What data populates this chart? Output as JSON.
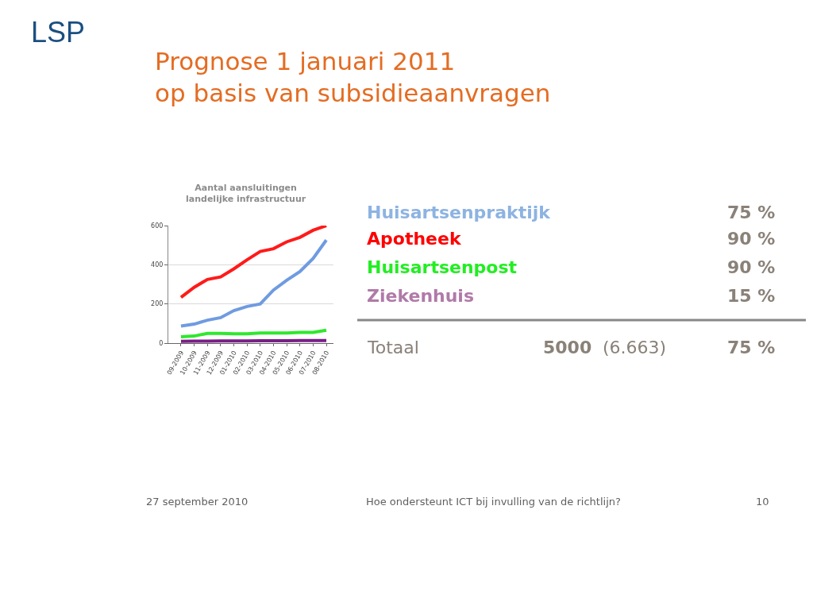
{
  "chart_data": [
    {
      "type": "line",
      "title": "Aantal aansluitingen\nlandelijke infrastructuur",
      "categories": [
        "09-2009",
        "10-2009",
        "11-2009",
        "12-2009",
        "01-2010",
        "02-2010",
        "03-2010",
        "04-2010",
        "05-2010",
        "06-2010",
        "07-2010",
        "08-2010"
      ],
      "series": [
        {
          "color": "#6f9be0",
          "values": [
            87,
            97,
            117,
            130,
            166,
            187,
            200,
            271,
            321,
            365,
            432,
            526
          ]
        },
        {
          "color": "#ff1a1a",
          "values": [
            234,
            285,
            325,
            338,
            379,
            425,
            468,
            482,
            517,
            540,
            576,
            600
          ]
        },
        {
          "color": "#2ee82e",
          "values": [
            32,
            36,
            50,
            50,
            48,
            48,
            52,
            52,
            52,
            55,
            55,
            66
          ]
        },
        {
          "color": "#7a1e88",
          "values": [
            9,
            10,
            10,
            11,
            11,
            11,
            12,
            12,
            12,
            13,
            13,
            13
          ]
        }
      ],
      "ylim": [
        0,
        600
      ],
      "yticks": [
        0,
        200,
        400,
        600
      ],
      "grid": "y",
      "marker": "none",
      "line_style": "solid"
    },
    {
      "type": "other",
      "title": "Prognose 1 januari 2011\nop basis van subsidieaanvragen",
      "categories": [
        "Huisartsenpraktijk",
        "Apotheek",
        "Huisartsenpost",
        "Ziekenhuis",
        "Totaal"
      ],
      "colors": [
        "#8db3e2",
        "#ff0000",
        "#22ee22",
        "#b07aa8",
        "#8a8178"
      ],
      "value_labels": [
        "75 %",
        "90 %",
        "90 %",
        "15 %",
        "75 %"
      ],
      "annotations": [
        "LSP",
        "5000",
        "(6.663)",
        "27 september 2010",
        "Hoe ondersteunt ICT bij invulling van de richtlijn?",
        "10"
      ]
    }
  ]
}
